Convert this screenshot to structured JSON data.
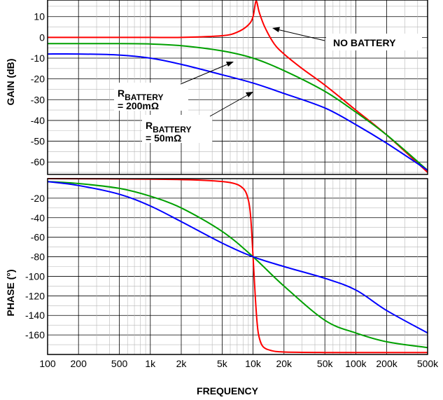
{
  "chart_data": [
    {
      "type": "line",
      "panel": "gain",
      "ylabel": "GAIN (dB)",
      "xscale": "log",
      "xlim": [
        100,
        500000
      ],
      "ylim": [
        -66,
        18
      ],
      "yticks": [
        10,
        0,
        -10,
        -20,
        -30,
        -40,
        -50,
        -60
      ],
      "ytick_labels": [
        "10",
        "0",
        "-10",
        "-20",
        "-30",
        "-40",
        "-50",
        "-60"
      ],
      "grid": true,
      "series": [
        {
          "color": "#ff0000",
          "annotation": "no_battery",
          "x": [
            100,
            500,
            1000,
            2000,
            5000,
            7000,
            9000,
            10000,
            10700,
            11500,
            13000,
            16000,
            20000,
            30000,
            50000,
            100000,
            200000,
            500000
          ],
          "y": [
            0,
            0,
            0,
            0,
            0.8,
            2.5,
            6,
            10,
            17.5,
            12,
            5,
            -3,
            -8,
            -15,
            -23,
            -35,
            -47,
            -65
          ]
        },
        {
          "color": "#00a000",
          "annotation": "r_200",
          "x": [
            100,
            500,
            1000,
            2000,
            5000,
            10000,
            20000,
            50000,
            100000,
            200000,
            500000
          ],
          "y": [
            -3,
            -3,
            -3.2,
            -4,
            -6.5,
            -10,
            -16,
            -26,
            -36,
            -47,
            -64
          ]
        },
        {
          "color": "#0000ff",
          "annotation": "r_50",
          "x": [
            100,
            200,
            500,
            1000,
            2000,
            5000,
            10000,
            20000,
            50000,
            100000,
            200000,
            500000
          ],
          "y": [
            -8,
            -8,
            -8.5,
            -10,
            -13,
            -18,
            -22,
            -27,
            -34,
            -42,
            -51,
            -64
          ]
        }
      ]
    },
    {
      "type": "line",
      "panel": "phase",
      "xlabel": "FREQUENCY",
      "ylabel": "PHASE (°)",
      "xscale": "log",
      "xlim": [
        100,
        500000
      ],
      "ylim": [
        -180,
        0
      ],
      "yticks": [
        -20,
        -40,
        -60,
        -80,
        -100,
        -120,
        -140,
        -160
      ],
      "ytick_labels": [
        "-20",
        "-40",
        "-60",
        "-80",
        "-100",
        "-120",
        "-140",
        "-160"
      ],
      "xticks": [
        100,
        200,
        500,
        1000,
        2000,
        5000,
        10000,
        20000,
        50000,
        100000,
        200000,
        500000
      ],
      "xtick_labels": [
        "100",
        "200",
        "500",
        "1k",
        "2k",
        "5k",
        "10k",
        "20k",
        "50k",
        "100k",
        "200k",
        "500k"
      ],
      "grid": true,
      "series": [
        {
          "color": "#ff0000",
          "x": [
            100,
            1000,
            3000,
            6000,
            8000,
            9000,
            9500,
            10000,
            10500,
            11000,
            11500,
            12500,
            15000,
            20000,
            50000,
            100000,
            500000
          ],
          "y": [
            0,
            -0.5,
            -1.5,
            -4,
            -10,
            -22,
            -40,
            -80,
            -120,
            -150,
            -163,
            -172,
            -176,
            -177.5,
            -178,
            -178,
            -178
          ]
        },
        {
          "color": "#00a000",
          "x": [
            100,
            200,
            500,
            1000,
            2000,
            5000,
            10000,
            20000,
            50000,
            100000,
            200000,
            500000
          ],
          "y": [
            -3,
            -5,
            -10,
            -18,
            -30,
            -54,
            -80,
            -110,
            -145,
            -158,
            -167,
            -173
          ]
        },
        {
          "color": "#0000ff",
          "x": [
            100,
            200,
            500,
            1000,
            2000,
            5000,
            10000,
            20000,
            50000,
            100000,
            200000,
            500000
          ],
          "y": [
            -3,
            -7,
            -16,
            -28,
            -44,
            -66,
            -80,
            -90,
            -102,
            -114,
            -135,
            -158
          ]
        }
      ]
    }
  ],
  "annotations": {
    "no_battery": "NO BATTERY",
    "r_200": {
      "r": "R",
      "sub": "BATTERY",
      "value": "= 200mΩ"
    },
    "r_50": {
      "r": "R",
      "sub": "BATTERY",
      "value": "= 50mΩ"
    }
  }
}
